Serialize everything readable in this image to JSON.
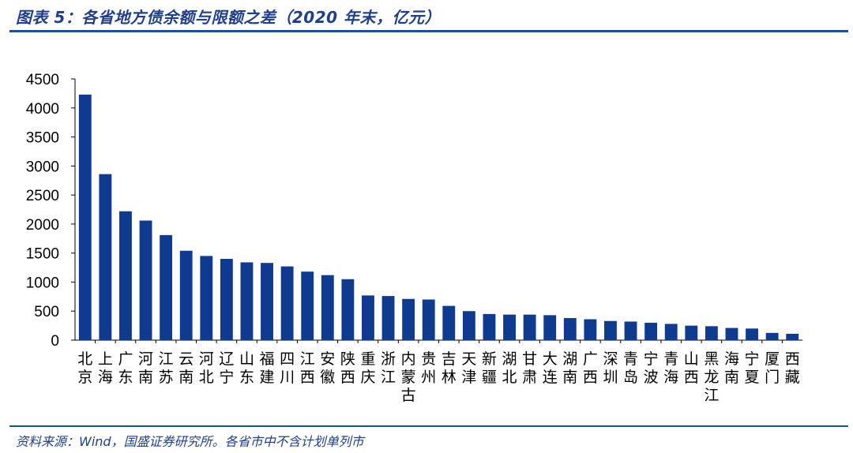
{
  "header": {
    "title": "图表 5：各省地方债余额与限额之差（2020 年末，亿元）"
  },
  "footer": {
    "source": "资料来源：Wind，国盛证券研究所。各省市中不含计划单列市"
  },
  "colors": {
    "bar": "#0e3a8f",
    "header_text": "#1f3f8a",
    "rule": "#1f4e9a"
  },
  "chart_data": {
    "type": "bar",
    "title": "",
    "xlabel": "",
    "ylabel": "",
    "ylim": [
      0,
      4500
    ],
    "yticks": [
      0,
      500,
      1000,
      1500,
      2000,
      2500,
      3000,
      3500,
      4000,
      4500
    ],
    "grid": false,
    "legend": "none",
    "categories": [
      "北京",
      "上海",
      "广东",
      "河南",
      "江苏",
      "云南",
      "河北",
      "辽宁",
      "山东",
      "福建",
      "四川",
      "江西",
      "安徽",
      "陕西",
      "重庆",
      "浙江",
      "内蒙古",
      "贵州",
      "吉林",
      "天津",
      "新疆",
      "湖北",
      "甘肃",
      "大连",
      "湖南",
      "广西",
      "深圳",
      "青岛",
      "宁波",
      "青海",
      "山西",
      "黑龙江",
      "海南",
      "宁夏",
      "厦门",
      "西藏"
    ],
    "values": [
      4230,
      2860,
      2220,
      2060,
      1810,
      1540,
      1450,
      1400,
      1340,
      1330,
      1270,
      1180,
      1120,
      1050,
      770,
      760,
      710,
      700,
      590,
      500,
      450,
      440,
      440,
      430,
      380,
      360,
      330,
      320,
      300,
      280,
      250,
      240,
      210,
      200,
      125,
      110
    ]
  }
}
